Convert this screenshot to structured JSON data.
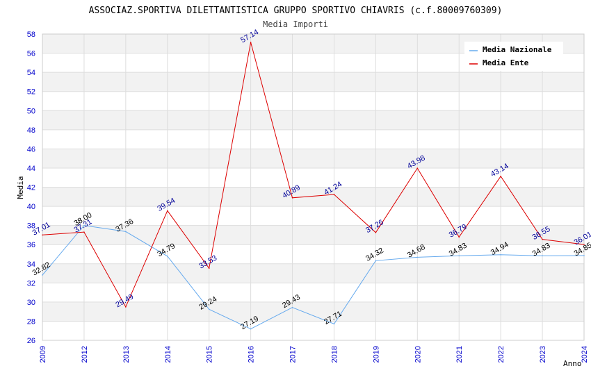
{
  "chart_data": {
    "type": "line",
    "title": "ASSOCIAZ.SPORTIVA DILETTANTISTICA GRUPPO SPORTIVO CHIAVRIS (c.f.80009760309)",
    "subtitle": "Media Importi",
    "xlabel": "Anno",
    "ylabel": "Media",
    "ylim": [
      26,
      58
    ],
    "y_ticks": [
      "26",
      "28",
      "30",
      "32",
      "34",
      "36",
      "38",
      "40",
      "42",
      "44",
      "46",
      "48",
      "50",
      "52",
      "54",
      "56",
      "58"
    ],
    "categories": [
      "2009",
      "2012",
      "2013",
      "2014",
      "2015",
      "2016",
      "2017",
      "2018",
      "2019",
      "2020",
      "2021",
      "2022",
      "2023",
      "2024"
    ],
    "grid": true,
    "legend_position": "top-right",
    "series": [
      {
        "name": "Media Nazionale",
        "color": "#66aaee",
        "label_color": "#000000",
        "values": [
          32.82,
          38.0,
          37.36,
          34.79,
          29.24,
          27.19,
          29.43,
          27.71,
          34.32,
          34.68,
          34.83,
          34.94,
          34.83,
          34.85
        ],
        "labels": [
          "32.82",
          "38.00",
          "37.36",
          "34.79",
          "29.24",
          "27.19",
          "29.43",
          "27.71",
          "34.32",
          "34.68",
          "34.83",
          "34.94",
          "34.83",
          "34.85"
        ]
      },
      {
        "name": "Media Ente",
        "color": "#dd0000",
        "label_color": "#000099",
        "values": [
          37.01,
          37.31,
          29.49,
          39.54,
          33.53,
          57.14,
          40.89,
          41.24,
          37.26,
          43.98,
          36.79,
          43.14,
          36.55,
          36.01
        ],
        "labels": [
          "37.01",
          "37.31",
          "29.49",
          "39.54",
          "33.53",
          "57.14",
          "40.89",
          "41.24",
          "37.26",
          "43.98",
          "36.79",
          "43.14",
          "36.55",
          "36.01"
        ]
      }
    ]
  }
}
